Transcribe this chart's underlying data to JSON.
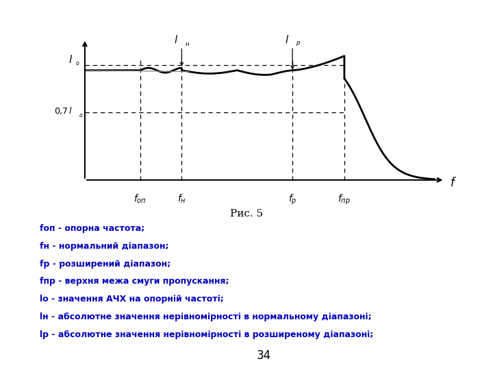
{
  "title": "Рис. 5",
  "legend_lines": [
    "fоп - опорна частота;",
    "fн - нормальний діапазон;",
    "fр - розширений діапазон;",
    "fпр - верхня межа смуги пропускання;",
    "lo - значення АЧХ на опорній частоті;",
    "lн - абсолютне значення нерівномірності в нормальному діапазоні;",
    "lр - абсолютне значення нерівномірності в розширеному діапазоні;"
  ],
  "page_number": "34",
  "blue_color": "#0000BB",
  "black_color": "#000000",
  "bg_color": "#FFFFFF",
  "f_op": 0.16,
  "f_n": 0.28,
  "f_p": 0.6,
  "f_pr": 0.75,
  "l_o": 0.88,
  "l_07": 0.52
}
